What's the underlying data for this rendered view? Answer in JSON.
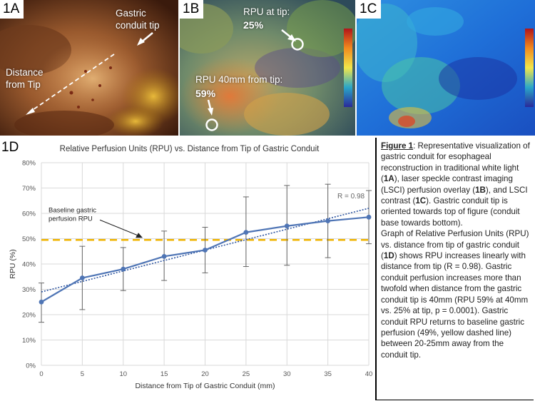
{
  "panels": {
    "p1a": {
      "label": "1A",
      "annotation_tip": "Gastric conduit tip",
      "annotation_distance": "Distance from Tip"
    },
    "p1b": {
      "label": "1B",
      "annotation_tip_label": "RPU at tip:",
      "annotation_tip_value": "25%",
      "annotation_40_label": "RPU 40mm from tip:",
      "annotation_40_value": "59%"
    },
    "p1c": {
      "label": "1C"
    }
  },
  "chart_label": "1D",
  "chart_data": {
    "type": "line",
    "title": "Relative Perfusion Units (RPU) vs. Distance from Tip of Gastric Conduit",
    "xlabel": "Distance from Tip of Gastric Conduit (mm)",
    "ylabel": "RPU (%)",
    "x": [
      0,
      5,
      10,
      15,
      20,
      25,
      30,
      35,
      40
    ],
    "xlim": [
      0,
      40
    ],
    "ylim": [
      0,
      80
    ],
    "x_ticks": [
      "0",
      "5",
      "10",
      "15",
      "20",
      "25",
      "30",
      "35",
      "40"
    ],
    "y_ticks": [
      "0%",
      "10%",
      "20%",
      "30%",
      "40%",
      "50%",
      "60%",
      "70%",
      "80%"
    ],
    "grid": true,
    "series": [
      {
        "values": [
          25,
          34.5,
          38,
          43,
          45.5,
          52.5,
          55,
          57,
          58.5
        ],
        "err_low": [
          17,
          22,
          29.5,
          33.5,
          36.5,
          39,
          39.5,
          42.5,
          48
        ],
        "err_high": [
          32.5,
          47,
          46.5,
          53,
          54.5,
          66.5,
          71,
          71.5,
          69
        ],
        "color": "#4f75b5"
      }
    ],
    "trendline": {
      "y_at_xmin": 29,
      "y_at_xmax": 62,
      "label": "R = 0.98",
      "color": "#2e55a0"
    },
    "baseline": {
      "y": 49.5,
      "label_line1": "Baseline gastric",
      "label_line2": "perfusion RPU",
      "color": "#f0b400"
    }
  },
  "caption": {
    "fig_label": "Figure 1",
    "p1": ": Representative visualization of gastric conduit for esophageal reconstruction in traditional white light (",
    "b1": "1A",
    "p2": "), laser speckle contrast imaging (LSCI) perfusion overlay (",
    "b2": "1B",
    "p3": "), and LSCI contrast (",
    "b3": "1C",
    "p4": "). Gastric conduit tip is oriented towards top of figure (conduit base towards bottom).",
    "p5": "Graph of Relative Perfusion Units (RPU) vs. distance from tip of gastric conduit (",
    "b5": "1D",
    "p6": ") shows RPU increases linearly with distance from tip (R = 0.98). Gastric conduit perfusion increases more than twofold when distance from the gastric conduit tip is 40mm (RPU 59% at 40mm vs. 25% at tip, p = 0.0001). Gastric conduit RPU returns to baseline gastric perfusion (49%, yellow dashed line) between 20-25mm away from the conduit tip."
  }
}
